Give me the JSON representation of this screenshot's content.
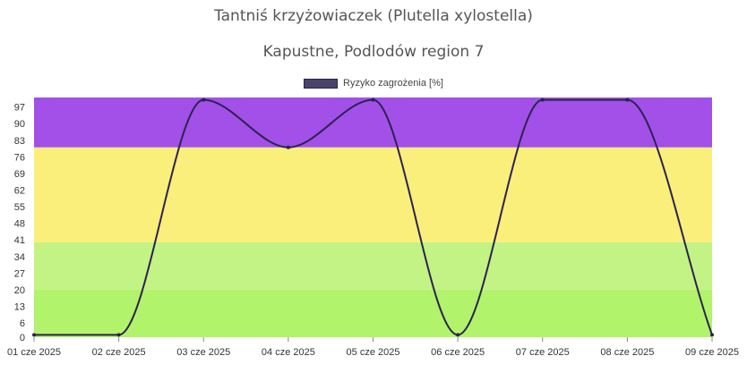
{
  "chart_data": {
    "type": "line",
    "title": "Tantniś krzyżowiaczek (Plutella xylostella)",
    "subtitle": "Kapustne, Podlodów region 7",
    "categories": [
      "01 cze 2025",
      "02 cze 2025",
      "03 cze 2025",
      "04 cze 2025",
      "05 cze 2025",
      "06 cze 2025",
      "07 cze 2025",
      "08 cze 2025",
      "09 cze 2025"
    ],
    "series": [
      {
        "name": "Ryzyko zagrożenia [%]",
        "color": "#2b2350",
        "values": [
          1,
          1,
          100,
          80,
          100,
          1,
          100,
          100,
          1
        ]
      }
    ],
    "ylim": [
      0,
      101
    ],
    "yticks": [
      0,
      6,
      13,
      20,
      27,
      34,
      41,
      48,
      55,
      62,
      69,
      76,
      83,
      90,
      97
    ],
    "bands": [
      {
        "from": 0,
        "to": 20,
        "color": "#b1f36b"
      },
      {
        "from": 20,
        "to": 40,
        "color": "#c3f384"
      },
      {
        "from": 40,
        "to": 80,
        "color": "#fbef7b"
      },
      {
        "from": 80,
        "to": 101,
        "color": "#a250e8"
      }
    ],
    "legend_position": "top"
  }
}
